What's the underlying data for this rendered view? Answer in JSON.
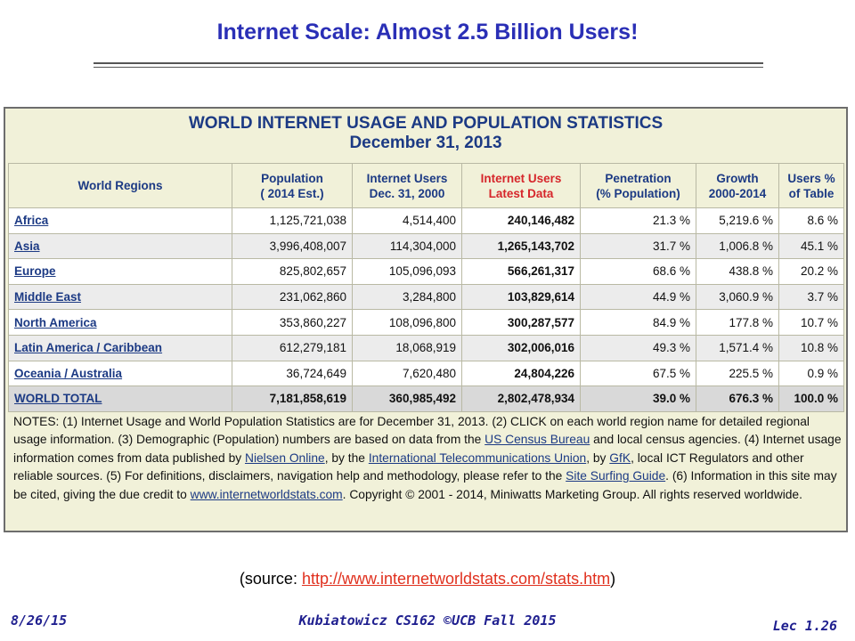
{
  "slide": {
    "title": "Internet Scale: Almost 2.5 Billion Users!",
    "source_prefix": "(source: ",
    "source_url": "http://www.internetworldstats.com/stats.htm",
    "source_suffix": ")",
    "footer_date": "8/26/15",
    "footer_course": "Kubiatowicz CS162 ©UCB Fall 2015",
    "footer_lecture": "Lec 1.26"
  },
  "panel": {
    "title_line1": "WORLD INTERNET USAGE AND POPULATION STATISTICS",
    "title_line2": "December 31, 2013",
    "headers": {
      "region_h": "World Regions",
      "pop_h1": "Population",
      "pop_h2": "( 2014 Est.)",
      "users2000_h1": "Internet Users",
      "users2000_h2": "Dec. 31, 2000",
      "latest_h1": "Internet Users",
      "latest_h2": "Latest Data",
      "pen_h1": "Penetration",
      "pen_h2": "(% Population)",
      "growth_h1": "Growth",
      "growth_h2": "2000-2014",
      "share_h1": "Users %",
      "share_h2": "of Table"
    },
    "rows": [
      {
        "region": "Africa",
        "population": "1,125,721,038",
        "users_2000": "4,514,400",
        "users_latest": "240,146,482",
        "penetration": "21.3 %",
        "growth": "5,219.6 %",
        "share": "8.6 %"
      },
      {
        "region": "Asia",
        "population": "3,996,408,007",
        "users_2000": "114,304,000",
        "users_latest": "1,265,143,702",
        "penetration": "31.7 %",
        "growth": "1,006.8 %",
        "share": "45.1 %"
      },
      {
        "region": "Europe",
        "population": "825,802,657",
        "users_2000": "105,096,093",
        "users_latest": "566,261,317",
        "penetration": "68.6 %",
        "growth": "438.8 %",
        "share": "20.2 %"
      },
      {
        "region": "Middle East",
        "population": "231,062,860",
        "users_2000": "3,284,800",
        "users_latest": "103,829,614",
        "penetration": "44.9 %",
        "growth": "3,060.9 %",
        "share": "3.7 %"
      },
      {
        "region": "North America",
        "population": "353,860,227",
        "users_2000": "108,096,800",
        "users_latest": "300,287,577",
        "penetration": "84.9 %",
        "growth": "177.8 %",
        "share": "10.7 %"
      },
      {
        "region": "Latin America / Caribbean",
        "population": "612,279,181",
        "users_2000": "18,068,919",
        "users_latest": "302,006,016",
        "penetration": "49.3 %",
        "growth": "1,571.4 %",
        "share": "10.8 %"
      },
      {
        "region": "Oceania / Australia",
        "population": "36,724,649",
        "users_2000": "7,620,480",
        "users_latest": "24,804,226",
        "penetration": "67.5 %",
        "growth": "225.5 %",
        "share": "0.9 %"
      }
    ],
    "total": {
      "region": "WORLD TOTAL",
      "population": "7,181,858,619",
      "users_2000": "360,985,492",
      "users_latest": "2,802,478,934",
      "penetration": "39.0 %",
      "growth": "676.3 %",
      "share": "100.0 %"
    },
    "notes": {
      "t1": "NOTES: (1) Internet Usage and World Population Statistics are for December 31, 2013. (2) CLICK on each world region name for detailed regional usage information. (3) Demographic (Population) numbers are based on data from the ",
      "l1": "US Census Bureau",
      "t2": " and local census agencies. (4) Internet usage information comes from data published by ",
      "l2": "Nielsen Online",
      "t3": ", by the ",
      "l3": "International Telecommunications Union",
      "t4": ", by ",
      "l4": "GfK",
      "t5": ", local ICT Regulators and other reliable sources. (5) For definitions, disclaimers, navigation help and methodology, please refer to the ",
      "l5": "Site Surfing Guide",
      "t6": ". (6) Information in this site may be cited, giving the due credit to ",
      "l6": "www.internetworldstats.com",
      "t7": ". Copyright © 2001 - 2014, Miniwatts Marketing Group. All rights reserved worldwide."
    }
  },
  "colors": {
    "title": "#2a2fb6",
    "panel_bg": "#f1f1d9",
    "header_text": "#1c3a84",
    "highlight_header": "#d6262b",
    "source_link": "#e0301e",
    "footer": "#1f1f8f"
  }
}
